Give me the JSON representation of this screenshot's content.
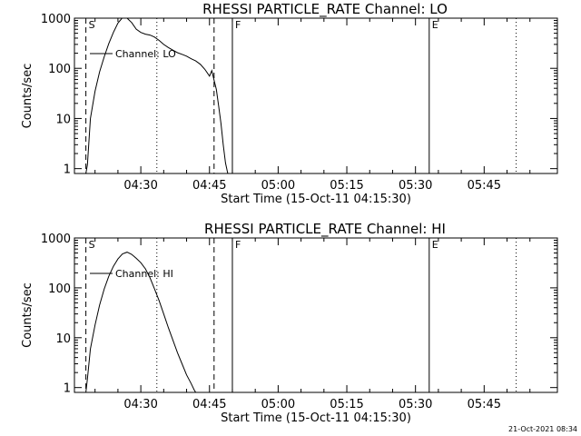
{
  "chart_data": [
    {
      "type": "line",
      "title": "RHESSI PARTICLE_RATE Channel: LO",
      "xlabel": "Start Time (15-Oct-11 04:15:30)",
      "ylabel": "Counts/sec",
      "yscale": "log",
      "xlim_minutes": [
        "04:15:30",
        "06:01:00"
      ],
      "ylim": [
        0.8,
        1000
      ],
      "y_tick_labels": [
        "1",
        "10",
        "100",
        "1000"
      ],
      "x_tick_labels": [
        "04:30",
        "04:45",
        "05:00",
        "05:15",
        "05:30",
        "05:45"
      ],
      "legend": "Channel: LO",
      "legend_placement": "top-left",
      "markers": [
        {
          "label": "S",
          "time": "04:18",
          "style": "dashed"
        },
        {
          "label": "",
          "time": "04:33:30",
          "style": "dotted"
        },
        {
          "label": "",
          "time": "04:46",
          "style": "dashed"
        },
        {
          "label": "F",
          "time": "04:50",
          "style": "solid"
        },
        {
          "label": "E",
          "time": "05:33",
          "style": "solid"
        },
        {
          "label": "",
          "time": "05:52",
          "style": "dotted"
        }
      ],
      "series": [
        {
          "x": [
            "04:18",
            "04:18:20",
            "04:19",
            "04:20",
            "04:21",
            "04:22",
            "04:23",
            "04:24",
            "04:25",
            "04:26",
            "04:27",
            "04:28",
            "04:29",
            "04:30",
            "04:31",
            "04:32",
            "04:33",
            "04:34",
            "04:35",
            "04:36",
            "04:37",
            "04:38",
            "04:39",
            "04:40",
            "04:41",
            "04:42",
            "04:43",
            "04:44",
            "04:45",
            "04:45:30",
            "04:46",
            "04:46:30",
            "04:47",
            "04:47:30",
            "04:48",
            "04:48:30",
            "04:49"
          ],
          "y": [
            0.8,
            1.2,
            10,
            35,
            85,
            170,
            310,
            520,
            800,
            1020,
            1000,
            820,
            600,
            520,
            480,
            460,
            420,
            360,
            300,
            260,
            230,
            205,
            190,
            175,
            155,
            140,
            120,
            95,
            70,
            90,
            58,
            38,
            18,
            8,
            3,
            1.3,
            0.8
          ]
        }
      ]
    },
    {
      "type": "line",
      "title": "RHESSI PARTICLE_RATE Channel: HI",
      "xlabel": "Start Time (15-Oct-11 04:15:30)",
      "ylabel": "Counts/sec",
      "yscale": "log",
      "xlim_minutes": [
        "04:15:30",
        "06:01:00"
      ],
      "ylim": [
        0.8,
        1000
      ],
      "y_tick_labels": [
        "1",
        "10",
        "100",
        "1000"
      ],
      "x_tick_labels": [
        "04:30",
        "04:45",
        "05:00",
        "05:15",
        "05:30",
        "05:45"
      ],
      "legend": "Channel: HI",
      "legend_placement": "top-left",
      "markers": [
        {
          "label": "S",
          "time": "04:18",
          "style": "dashed"
        },
        {
          "label": "",
          "time": "04:33:30",
          "style": "dotted"
        },
        {
          "label": "",
          "time": "04:46",
          "style": "dashed"
        },
        {
          "label": "F",
          "time": "04:50",
          "style": "solid"
        },
        {
          "label": "E",
          "time": "05:33",
          "style": "solid"
        },
        {
          "label": "",
          "time": "05:52",
          "style": "dotted"
        }
      ],
      "series": [
        {
          "x": [
            "04:18",
            "04:18:20",
            "04:19",
            "04:20",
            "04:21",
            "04:22",
            "04:23",
            "04:24",
            "04:25",
            "04:26",
            "04:27",
            "04:28",
            "04:29",
            "04:30",
            "04:31",
            "04:32",
            "04:33",
            "04:34",
            "04:35",
            "04:36",
            "04:37",
            "04:38",
            "04:39",
            "04:40",
            "04:41",
            "04:41:40",
            "04:42"
          ],
          "y": [
            0.8,
            1.5,
            6,
            18,
            45,
            95,
            170,
            270,
            380,
            480,
            520,
            470,
            390,
            320,
            240,
            160,
            95,
            55,
            30,
            16,
            9,
            5,
            3,
            1.8,
            1.2,
            0.9,
            0.8
          ]
        }
      ]
    }
  ],
  "footer": {
    "timestamp": "21-Oct-2021 08:34"
  }
}
